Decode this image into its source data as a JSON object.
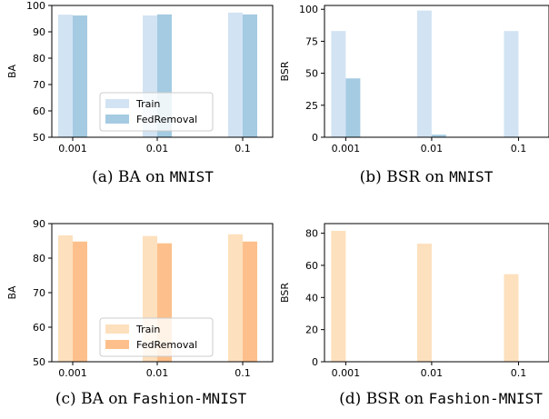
{
  "colors": {
    "blue_train": "#d2e3f3",
    "blue_fed": "#a4cbe2",
    "orange_train": "#fde0bd",
    "orange_fed": "#fdc08c"
  },
  "chart_data": [
    {
      "id": "a",
      "type": "bar",
      "palette": "blue",
      "categories": [
        "0.001",
        "0.01",
        "0.1"
      ],
      "series": [
        {
          "name": "Train",
          "values": [
            96.5,
            96.2,
            97.3
          ]
        },
        {
          "name": "FedRemoval",
          "values": [
            96.2,
            96.6,
            96.6
          ]
        }
      ],
      "ylabel": "BA",
      "ylim": [
        50,
        100
      ],
      "yticks": [
        50,
        60,
        70,
        80,
        90,
        100
      ],
      "legend": "lower-center",
      "caption_prefix": "(a) BA on ",
      "caption_dataset": "MNIST"
    },
    {
      "id": "b",
      "type": "bar",
      "palette": "blue",
      "categories": [
        "0.001",
        "0.01",
        "0.1"
      ],
      "series": [
        {
          "name": "Train",
          "values": [
            83,
            99,
            83
          ]
        },
        {
          "name": "FedRemoval",
          "values": [
            46,
            2,
            0
          ]
        }
      ],
      "ylabel": "BSR",
      "ylim": [
        0,
        103
      ],
      "yticks": [
        0,
        25,
        50,
        75,
        100
      ],
      "caption_prefix": "(b) BSR on ",
      "caption_dataset": "MNIST"
    },
    {
      "id": "c",
      "type": "bar",
      "palette": "orange",
      "categories": [
        "0.001",
        "0.01",
        "0.1"
      ],
      "series": [
        {
          "name": "Train",
          "values": [
            86.6,
            86.4,
            86.9
          ]
        },
        {
          "name": "FedRemoval",
          "values": [
            84.8,
            84.3,
            84.8
          ]
        }
      ],
      "ylabel": "BA",
      "ylim": [
        50,
        90
      ],
      "yticks": [
        50,
        60,
        70,
        80,
        90
      ],
      "legend": "lower-center",
      "caption_prefix": "(c) BA on ",
      "caption_dataset": "Fashion-MNIST"
    },
    {
      "id": "d",
      "type": "bar",
      "palette": "orange",
      "categories": [
        "0.001",
        "0.01",
        "0.1"
      ],
      "series": [
        {
          "name": "Train",
          "values": [
            81.5,
            73.5,
            54.5
          ]
        },
        {
          "name": "FedRemoval",
          "values": [
            0.3,
            0.3,
            0.3
          ]
        }
      ],
      "ylabel": "BSR",
      "ylim": [
        0,
        86
      ],
      "yticks": [
        0,
        20,
        40,
        60,
        80
      ],
      "caption_prefix": "(d) BSR on ",
      "caption_dataset": "Fashion-MNIST"
    }
  ]
}
